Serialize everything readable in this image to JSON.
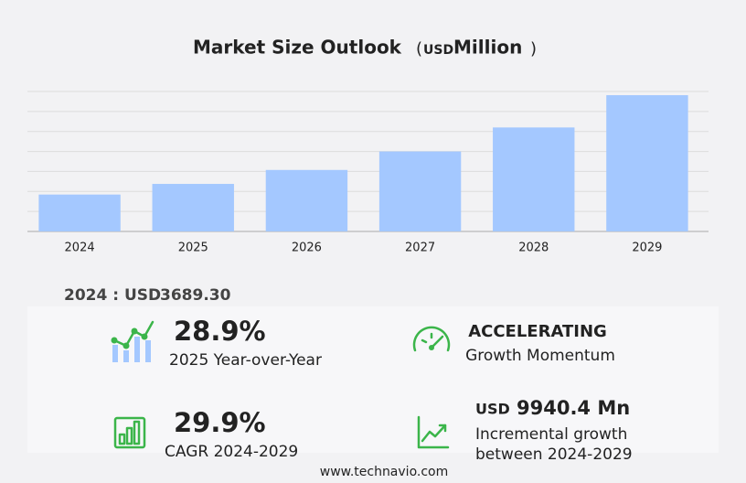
{
  "chart_data": {
    "type": "bar",
    "title": "Market Size Outlook",
    "unit_open": "(",
    "unit_currency": "USD",
    "unit": "Million",
    "unit_close": ")",
    "categories": [
      "2024",
      "2025",
      "2026",
      "2027",
      "2028",
      "2029"
    ],
    "values": [
      3689.3,
      4755.5,
      6150,
      8000,
      10400,
      13629.7
    ],
    "color": "#a4c8ff",
    "ylim": [
      0,
      14000
    ],
    "yticks": [
      0,
      2000,
      4000,
      6000,
      8000,
      10000,
      12000,
      14000
    ],
    "grid": true
  },
  "summary": {
    "base_label": "2024 : USD",
    "base_value": "3689.30",
    "yoy": {
      "value": "28.9%",
      "label": "2025 Year-over-Year"
    },
    "momentum": {
      "value": "ACCELERATING",
      "label": "Growth Momentum"
    },
    "cagr": {
      "value": "29.9%",
      "label": "CAGR 2024-2029"
    },
    "incremental": {
      "currency": "USD",
      "value": "9940.4 Mn",
      "label_line1": "Incremental growth",
      "label_line2": "between 2024-2029"
    }
  },
  "footer": "www.technavio.com"
}
